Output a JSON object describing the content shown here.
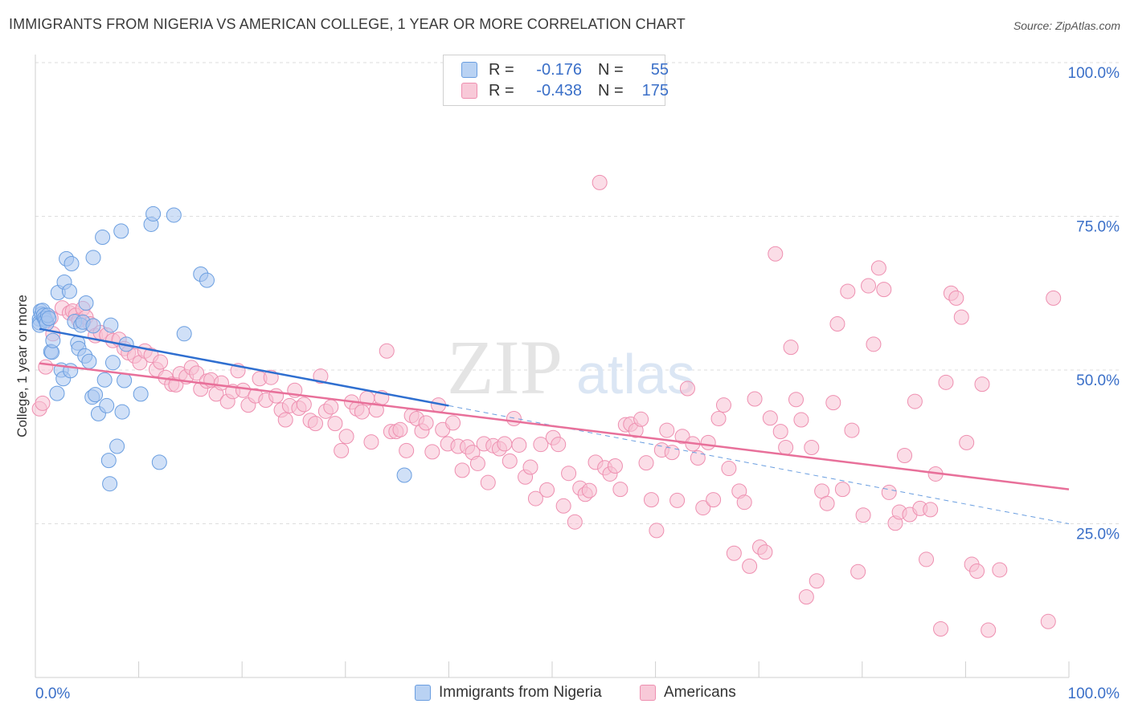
{
  "title": "IMMIGRANTS FROM NIGERIA VS AMERICAN COLLEGE, 1 YEAR OR MORE CORRELATION CHART",
  "source": "Source: ZipAtlas.com",
  "watermark": {
    "zip": "ZIP",
    "atlas": "atlas"
  },
  "legend": {
    "r_label": "R =",
    "n_label": "N =",
    "series": [
      {
        "r": "-0.176",
        "n": "55",
        "color": "#8ab4e8",
        "fill": "#b9d2f3"
      },
      {
        "r": "-0.438",
        "n": "175",
        "color": "#f0a0bc",
        "fill": "#f8c9d8"
      }
    ]
  },
  "bottom_legend": [
    "Immigrants from Nigeria",
    "Americans"
  ],
  "chart_data": {
    "type": "scatter",
    "xlabel": "",
    "ylabel": "College, 1 year or more",
    "xlim": [
      0,
      100
    ],
    "ylim": [
      0,
      100
    ],
    "x_tick_labels": [
      "0.0%",
      "100.0%"
    ],
    "y_tick_labels": [
      "25.0%",
      "50.0%",
      "75.0%",
      "100.0%"
    ],
    "grid": true,
    "legend_position": "top-center",
    "series": [
      {
        "name": "Immigrants from Nigeria",
        "color": "#6a9ee0",
        "points": [
          [
            0.4,
            58.3
          ],
          [
            0.4,
            57.7
          ],
          [
            0.4,
            57.3
          ],
          [
            0.5,
            59.6
          ],
          [
            0.6,
            59.1
          ],
          [
            0.7,
            59.7
          ],
          [
            0.8,
            58.9
          ],
          [
            0.9,
            58.4
          ],
          [
            1.0,
            58.1
          ],
          [
            1.1,
            57.6
          ],
          [
            1.2,
            58.9
          ],
          [
            1.3,
            58.4
          ],
          [
            1.5,
            53.0
          ],
          [
            1.6,
            52.9
          ],
          [
            1.7,
            54.8
          ],
          [
            2.1,
            46.2
          ],
          [
            2.2,
            62.6
          ],
          [
            2.5,
            50.0
          ],
          [
            2.7,
            48.6
          ],
          [
            2.8,
            64.3
          ],
          [
            3.0,
            68.1
          ],
          [
            3.3,
            62.8
          ],
          [
            3.4,
            49.9
          ],
          [
            3.5,
            67.3
          ],
          [
            3.8,
            57.9
          ],
          [
            4.1,
            54.4
          ],
          [
            4.2,
            53.5
          ],
          [
            4.4,
            57.3
          ],
          [
            4.6,
            57.8
          ],
          [
            4.8,
            52.3
          ],
          [
            4.9,
            60.9
          ],
          [
            5.2,
            51.4
          ],
          [
            5.5,
            45.6
          ],
          [
            5.6,
            57.2
          ],
          [
            5.6,
            68.3
          ],
          [
            5.8,
            46.0
          ],
          [
            6.1,
            42.9
          ],
          [
            6.5,
            71.6
          ],
          [
            6.7,
            48.4
          ],
          [
            6.9,
            44.2
          ],
          [
            7.1,
            35.3
          ],
          [
            7.2,
            31.5
          ],
          [
            7.3,
            57.3
          ],
          [
            7.5,
            51.2
          ],
          [
            7.9,
            37.6
          ],
          [
            8.3,
            72.6
          ],
          [
            8.4,
            43.2
          ],
          [
            8.6,
            48.3
          ],
          [
            8.8,
            54.2
          ],
          [
            10.2,
            46.1
          ],
          [
            11.2,
            73.7
          ],
          [
            11.4,
            75.4
          ],
          [
            12.0,
            35.0
          ],
          [
            13.4,
            75.2
          ],
          [
            14.4,
            55.9
          ],
          [
            16.0,
            65.6
          ],
          [
            16.6,
            64.6
          ],
          [
            35.7,
            32.9
          ]
        ],
        "trend": {
          "x0": 0.4,
          "y0": 56.7,
          "x1": 40.0,
          "y1": 44.2,
          "dash_x1": 100,
          "dash_y1": 25.0
        }
      },
      {
        "name": "Americans",
        "color": "#ee8fb0",
        "points": [
          [
            0.4,
            43.7
          ],
          [
            0.7,
            44.6
          ],
          [
            1.0,
            50.5
          ],
          [
            1.5,
            58.5
          ],
          [
            1.7,
            55.9
          ],
          [
            2.6,
            60.1
          ],
          [
            3.3,
            59.3
          ],
          [
            3.6,
            59.6
          ],
          [
            3.9,
            58.9
          ],
          [
            4.2,
            58.1
          ],
          [
            4.6,
            60.0
          ],
          [
            4.9,
            58.6
          ],
          [
            5.3,
            57.5
          ],
          [
            5.8,
            55.6
          ],
          [
            6.3,
            56.1
          ],
          [
            6.9,
            55.7
          ],
          [
            7.5,
            54.8
          ],
          [
            8.1,
            55.0
          ],
          [
            8.6,
            53.5
          ],
          [
            9.0,
            52.8
          ],
          [
            9.6,
            52.3
          ],
          [
            10.1,
            51.2
          ],
          [
            10.6,
            53.1
          ],
          [
            11.2,
            52.4
          ],
          [
            11.7,
            50.1
          ],
          [
            12.1,
            51.3
          ],
          [
            12.6,
            48.8
          ],
          [
            13.2,
            47.7
          ],
          [
            13.6,
            47.6
          ],
          [
            14.0,
            49.4
          ],
          [
            14.6,
            48.9
          ],
          [
            15.1,
            50.4
          ],
          [
            15.6,
            49.5
          ],
          [
            16.0,
            46.9
          ],
          [
            16.6,
            48.2
          ],
          [
            17.0,
            48.4
          ],
          [
            17.5,
            46.1
          ],
          [
            18.0,
            47.9
          ],
          [
            18.6,
            44.9
          ],
          [
            19.1,
            46.5
          ],
          [
            19.6,
            49.9
          ],
          [
            20.1,
            46.7
          ],
          [
            20.6,
            44.3
          ],
          [
            21.3,
            45.8
          ],
          [
            21.7,
            48.6
          ],
          [
            22.3,
            45.1
          ],
          [
            22.8,
            48.8
          ],
          [
            23.3,
            45.8
          ],
          [
            23.8,
            43.5
          ],
          [
            24.2,
            41.9
          ],
          [
            24.6,
            44.2
          ],
          [
            25.1,
            46.7
          ],
          [
            25.5,
            43.8
          ],
          [
            26.0,
            44.4
          ],
          [
            26.6,
            41.8
          ],
          [
            27.1,
            41.3
          ],
          [
            27.6,
            49.0
          ],
          [
            28.1,
            43.3
          ],
          [
            28.6,
            44.0
          ],
          [
            29.0,
            41.3
          ],
          [
            29.6,
            36.9
          ],
          [
            30.1,
            39.2
          ],
          [
            30.6,
            44.8
          ],
          [
            31.1,
            43.7
          ],
          [
            31.6,
            43.2
          ],
          [
            32.1,
            45.4
          ],
          [
            32.5,
            38.3
          ],
          [
            33.0,
            43.5
          ],
          [
            33.5,
            45.5
          ],
          [
            34.0,
            53.1
          ],
          [
            34.4,
            40.0
          ],
          [
            34.9,
            40.0
          ],
          [
            35.3,
            40.3
          ],
          [
            35.9,
            36.9
          ],
          [
            36.4,
            42.6
          ],
          [
            36.9,
            42.1
          ],
          [
            37.4,
            40.1
          ],
          [
            37.8,
            41.4
          ],
          [
            38.4,
            36.7
          ],
          [
            39.0,
            44.3
          ],
          [
            39.4,
            40.3
          ],
          [
            39.9,
            38.0
          ],
          [
            40.4,
            41.4
          ],
          [
            40.9,
            37.6
          ],
          [
            41.3,
            33.7
          ],
          [
            41.8,
            37.5
          ],
          [
            42.3,
            36.6
          ],
          [
            42.8,
            34.8
          ],
          [
            43.4,
            38.0
          ],
          [
            43.8,
            31.7
          ],
          [
            44.3,
            37.7
          ],
          [
            44.9,
            37.2
          ],
          [
            45.4,
            38.0
          ],
          [
            45.9,
            35.2
          ],
          [
            46.3,
            42.1
          ],
          [
            46.8,
            37.8
          ],
          [
            47.4,
            32.6
          ],
          [
            47.9,
            34.2
          ],
          [
            48.4,
            29.1
          ],
          [
            48.9,
            37.9
          ],
          [
            49.5,
            30.5
          ],
          [
            50.1,
            39.0
          ],
          [
            50.6,
            37.9
          ],
          [
            51.1,
            27.9
          ],
          [
            51.6,
            33.2
          ],
          [
            52.2,
            25.3
          ],
          [
            52.7,
            30.8
          ],
          [
            53.2,
            29.8
          ],
          [
            53.6,
            30.4
          ],
          [
            54.2,
            35.0
          ],
          [
            54.6,
            80.5
          ],
          [
            55.1,
            34.1
          ],
          [
            55.6,
            33.1
          ],
          [
            56.1,
            34.4
          ],
          [
            56.6,
            30.6
          ],
          [
            57.1,
            41.1
          ],
          [
            57.6,
            41.2
          ],
          [
            58.1,
            40.2
          ],
          [
            58.6,
            42.0
          ],
          [
            59.1,
            34.9
          ],
          [
            59.6,
            28.9
          ],
          [
            60.1,
            23.9
          ],
          [
            60.6,
            37.0
          ],
          [
            61.1,
            40.2
          ],
          [
            61.6,
            36.6
          ],
          [
            62.1,
            28.8
          ],
          [
            62.6,
            39.2
          ],
          [
            63.1,
            47.0
          ],
          [
            63.6,
            38.0
          ],
          [
            64.1,
            35.7
          ],
          [
            64.6,
            27.6
          ],
          [
            65.1,
            38.2
          ],
          [
            65.6,
            28.9
          ],
          [
            66.1,
            42.1
          ],
          [
            66.6,
            44.3
          ],
          [
            67.1,
            34.0
          ],
          [
            67.6,
            20.2
          ],
          [
            68.1,
            30.3
          ],
          [
            68.6,
            28.5
          ],
          [
            69.1,
            18.1
          ],
          [
            69.6,
            45.3
          ],
          [
            70.1,
            21.2
          ],
          [
            70.6,
            20.4
          ],
          [
            71.1,
            42.2
          ],
          [
            71.6,
            68.9
          ],
          [
            72.1,
            40.0
          ],
          [
            72.6,
            37.4
          ],
          [
            73.1,
            53.7
          ],
          [
            73.6,
            45.2
          ],
          [
            74.1,
            41.9
          ],
          [
            74.6,
            13.1
          ],
          [
            75.1,
            37.4
          ],
          [
            75.6,
            15.7
          ],
          [
            76.1,
            30.3
          ],
          [
            76.6,
            28.3
          ],
          [
            77.2,
            44.7
          ],
          [
            77.6,
            57.5
          ],
          [
            78.1,
            30.6
          ],
          [
            78.6,
            62.8
          ],
          [
            79.0,
            40.2
          ],
          [
            79.6,
            17.2
          ],
          [
            80.1,
            26.4
          ],
          [
            80.6,
            63.7
          ],
          [
            81.1,
            54.2
          ],
          [
            81.6,
            66.6
          ],
          [
            82.1,
            63.1
          ],
          [
            82.6,
            30.1
          ],
          [
            83.2,
            25.1
          ],
          [
            83.6,
            26.9
          ],
          [
            84.1,
            36.1
          ],
          [
            84.6,
            26.5
          ],
          [
            85.1,
            44.9
          ],
          [
            85.6,
            27.5
          ],
          [
            86.2,
            19.2
          ],
          [
            86.6,
            27.3
          ],
          [
            87.1,
            33.1
          ],
          [
            87.6,
            7.9
          ],
          [
            88.1,
            48.0
          ],
          [
            88.6,
            62.5
          ],
          [
            89.1,
            61.7
          ],
          [
            89.6,
            58.6
          ],
          [
            90.1,
            38.2
          ],
          [
            90.6,
            18.4
          ],
          [
            91.1,
            17.3
          ],
          [
            91.6,
            47.7
          ],
          [
            92.2,
            7.7
          ],
          [
            93.3,
            17.5
          ],
          [
            98.0,
            9.1
          ],
          [
            98.5,
            61.7
          ]
        ],
        "trend": {
          "x0": 0.4,
          "y0": 51.1,
          "x1": 100,
          "y1": 30.6
        }
      }
    ]
  }
}
